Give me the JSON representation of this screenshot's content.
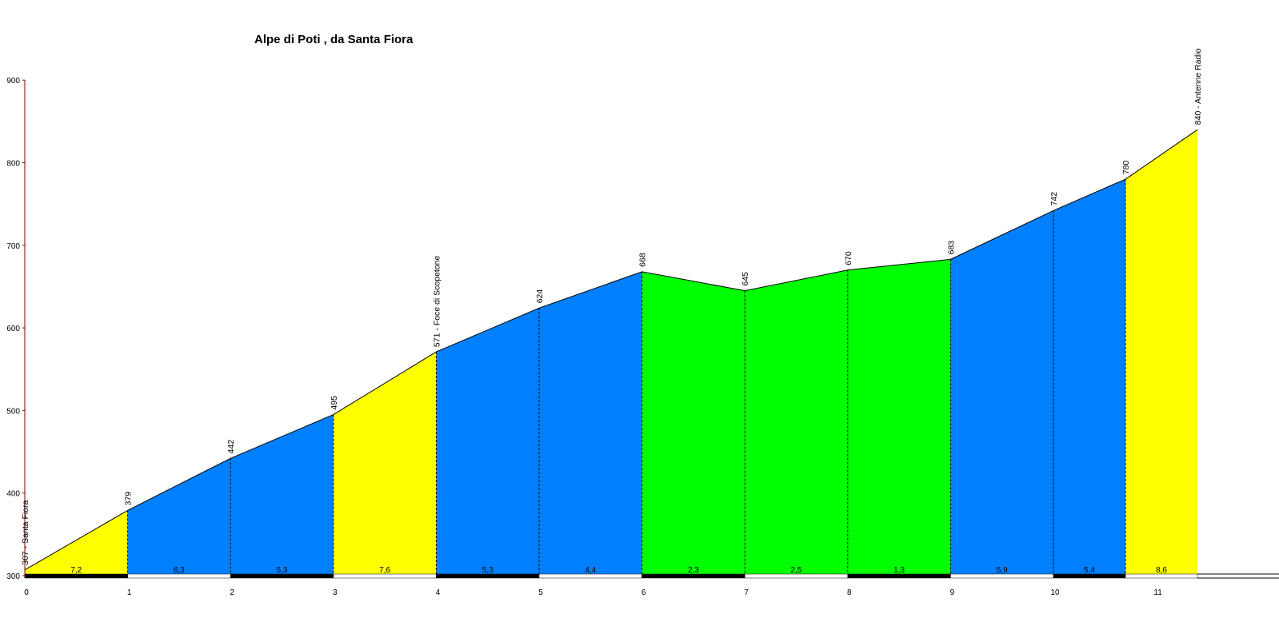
{
  "chart_data": {
    "type": "area",
    "title": "Alpe di Poti , da Santa Fiora",
    "xlabel": "",
    "ylabel": "",
    "xlim": [
      0,
      12.05
    ],
    "ylim": [
      300,
      900
    ],
    "y_ticks": [
      "300",
      "400",
      "500",
      "600",
      "700",
      "800",
      "900"
    ],
    "x_ticks": [
      "0",
      "1",
      "2",
      "3",
      "4",
      "5",
      "6",
      "7",
      "8",
      "9",
      "10",
      "11"
    ],
    "points": [
      {
        "x": 0,
        "y": 307,
        "label": "307 - Santa Fiora"
      },
      {
        "x": 1,
        "y": 379,
        "label": "379"
      },
      {
        "x": 2,
        "y": 442,
        "label": "442"
      },
      {
        "x": 3,
        "y": 495,
        "label": "495"
      },
      {
        "x": 4,
        "y": 571,
        "label": "571 - Foce di Scopetone"
      },
      {
        "x": 5,
        "y": 624,
        "label": "624"
      },
      {
        "x": 6,
        "y": 668,
        "label": "668"
      },
      {
        "x": 7,
        "y": 645,
        "label": "645"
      },
      {
        "x": 8,
        "y": 670,
        "label": "670"
      },
      {
        "x": 9,
        "y": 683,
        "label": "683"
      },
      {
        "x": 10,
        "y": 742,
        "label": "742"
      },
      {
        "x": 10.7,
        "y": 780,
        "label": "780"
      },
      {
        "x": 11.4,
        "y": 840,
        "label": "840 - Antenne Radio"
      }
    ],
    "segments": [
      {
        "grade": "7,2",
        "color": "#ffff00"
      },
      {
        "grade": "6,3",
        "color": "#0080ff"
      },
      {
        "grade": "5,3",
        "color": "#0080ff"
      },
      {
        "grade": "7,6",
        "color": "#ffff00"
      },
      {
        "grade": "5,3",
        "color": "#0080ff"
      },
      {
        "grade": "4,4",
        "color": "#0080ff"
      },
      {
        "grade": "2,3",
        "color": "#00ff00"
      },
      {
        "grade": "2,5",
        "color": "#00ff00"
      },
      {
        "grade": "1,3",
        "color": "#00ff00"
      },
      {
        "grade": "5,9",
        "color": "#0080ff"
      },
      {
        "grade": "5,4",
        "color": "#0080ff"
      },
      {
        "grade": "8,6",
        "color": "#ffff00"
      }
    ],
    "axis_color": "#800000",
    "grid": false
  }
}
